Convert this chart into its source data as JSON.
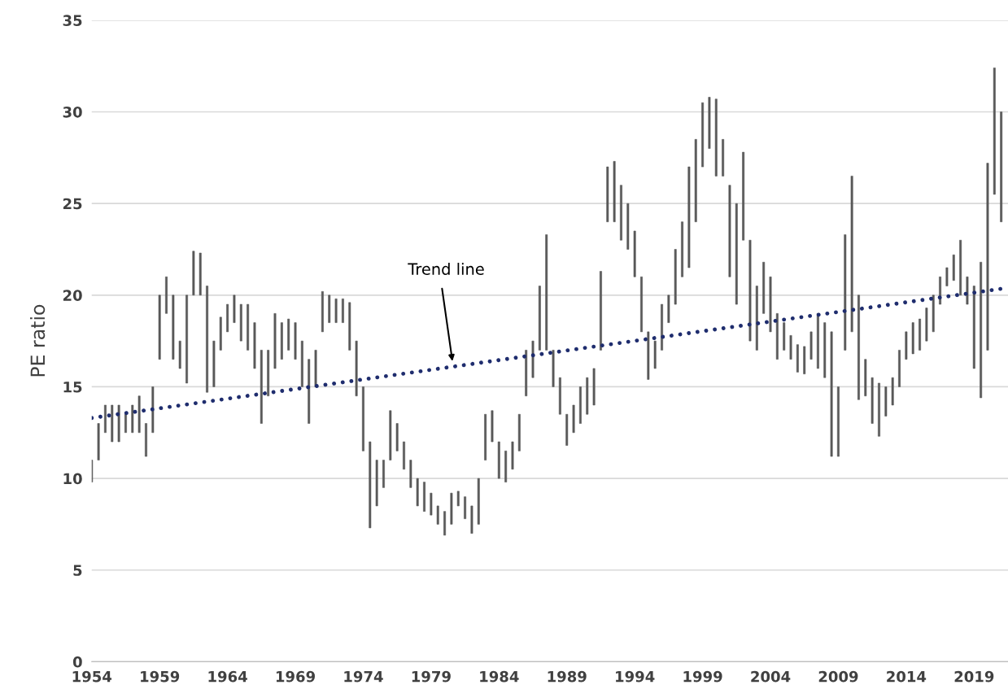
{
  "chart_data": {
    "type": "bar",
    "ylabel": "PE ratio",
    "x": [
      1954.0,
      1954.5,
      1955.0,
      1955.5,
      1956.0,
      1956.5,
      1957.0,
      1957.5,
      1958.0,
      1958.5,
      1959.0,
      1959.5,
      1960.0,
      1960.5,
      1961.0,
      1961.5,
      1962.0,
      1962.5,
      1963.0,
      1963.5,
      1964.0,
      1964.5,
      1965.0,
      1965.5,
      1966.0,
      1966.5,
      1967.0,
      1967.5,
      1968.0,
      1968.5,
      1969.0,
      1969.5,
      1970.0,
      1970.5,
      1971.0,
      1971.5,
      1972.0,
      1972.5,
      1973.0,
      1973.5,
      1974.0,
      1974.5,
      1975.0,
      1975.5,
      1976.0,
      1976.5,
      1977.0,
      1977.5,
      1978.0,
      1978.5,
      1979.0,
      1979.5,
      1980.0,
      1980.5,
      1981.0,
      1981.5,
      1982.0,
      1982.5,
      1983.0,
      1983.5,
      1984.0,
      1984.5,
      1985.0,
      1985.5,
      1986.0,
      1986.5,
      1987.0,
      1987.5,
      1988.0,
      1988.5,
      1989.0,
      1989.5,
      1990.0,
      1990.5,
      1991.0,
      1991.5,
      1992.0,
      1992.5,
      1993.0,
      1993.5,
      1994.0,
      1994.5,
      1995.0,
      1995.5,
      1996.0,
      1996.5,
      1997.0,
      1997.5,
      1998.0,
      1998.5,
      1999.0,
      1999.5,
      2000.0,
      2000.5,
      2001.0,
      2001.5,
      2002.0,
      2002.5,
      2003.0,
      2003.5,
      2004.0,
      2004.5,
      2005.0,
      2005.5,
      2006.0,
      2006.5,
      2007.0,
      2007.5,
      2008.0,
      2008.5,
      2009.0,
      2009.5,
      2010.0,
      2010.5,
      2011.0,
      2011.5,
      2012.0,
      2012.5,
      2013.0,
      2013.5,
      2014.0,
      2014.5,
      2015.0,
      2015.5,
      2016.0,
      2016.5,
      2017.0,
      2017.5,
      2018.0,
      2018.5,
      2019.0,
      2019.5,
      2020.0,
      2020.5,
      2021.0
    ],
    "series": [
      {
        "color": "#595959",
        "base": [
          9.8,
          11,
          12.5,
          12,
          12,
          12.5,
          12.5,
          12.5,
          11.2,
          12.5,
          16.5,
          19,
          16.5,
          16,
          15.2,
          20,
          20,
          14.7,
          15,
          17,
          18,
          18.5,
          17.5,
          17,
          16,
          13,
          14.5,
          16,
          16.5,
          17,
          16.5,
          15,
          13,
          15,
          18,
          18.5,
          18.5,
          18.5,
          17,
          14.5,
          11.5,
          7.3,
          8.5,
          9.5,
          11,
          11.5,
          10.5,
          9.5,
          8.5,
          8.2,
          8,
          7.5,
          6.9,
          7.5,
          8.5,
          7.8,
          7,
          7.5,
          11,
          12,
          10,
          9.8,
          10.5,
          11.5,
          14.5,
          15.5,
          17,
          17,
          15,
          13.5,
          11.8,
          12.5,
          13,
          13.5,
          14,
          17,
          24,
          24,
          23,
          22.5,
          21,
          18,
          15.4,
          16,
          17,
          18.5,
          19.5,
          21,
          21.5,
          24,
          27,
          28,
          26.5,
          26.5,
          21,
          19.5,
          23,
          17.5,
          17,
          19,
          18,
          16.5,
          17,
          16.5,
          15.8,
          15.7,
          16.5,
          16,
          15.5,
          11.2,
          11.2,
          17,
          18,
          14.3,
          14.5,
          13,
          12.3,
          13.4,
          14,
          15,
          16.5,
          16.8,
          17,
          17.5,
          18,
          19.5,
          20.5,
          20.8,
          20,
          19.5,
          16,
          14.4,
          17,
          25.5,
          24
        ],
        "values": [
          1.2,
          2,
          1.5,
          2,
          2,
          1,
          1.5,
          2,
          1.8,
          2.5,
          3.5,
          2,
          3.5,
          1.5,
          4.8,
          2.4,
          2.3,
          5.8,
          2.5,
          1.8,
          1.5,
          1.5,
          2,
          2.5,
          2.5,
          4,
          2.5,
          3,
          2,
          1.7,
          2,
          2.5,
          3.5,
          2,
          2.2,
          1.5,
          1.3,
          1.3,
          2.6,
          3,
          3.5,
          4.7,
          2.5,
          1.5,
          2.7,
          1.5,
          1.5,
          1.5,
          1.5,
          1.6,
          1.2,
          1,
          1.3,
          1.7,
          0.8,
          1.2,
          1.5,
          2.5,
          2.5,
          1.7,
          2,
          1.7,
          1.5,
          2,
          2.5,
          2,
          3.5,
          6.3,
          2,
          2,
          1.7,
          1.5,
          2,
          2,
          2,
          4.3,
          3,
          3.3,
          3,
          2.5,
          2.5,
          3,
          2.6,
          1.5,
          2.5,
          1.5,
          3,
          3,
          5.5,
          4.5,
          3.5,
          2.8,
          4.2,
          2,
          5,
          5.5,
          4.8,
          5.5,
          3.5,
          2.8,
          3,
          2.5,
          1.5,
          1.3,
          1.5,
          1.5,
          1.5,
          3,
          3,
          6.8,
          3.8,
          6.3,
          8.5,
          5.7,
          2,
          2.5,
          2.9,
          1.6,
          1.5,
          2,
          1.5,
          1.7,
          1.7,
          1.8,
          2,
          1.5,
          1,
          1.4,
          3,
          1.5,
          4.5,
          7.4,
          10.2,
          6.9,
          6
        ]
      },
      {
        "type": "line",
        "color": "#1f2d6e",
        "line_style": "dotted",
        "x": [
          1954.0,
          2021.5
        ],
        "values": [
          13.3,
          20.4
        ]
      }
    ],
    "annotations": [
      "Trend line"
    ],
    "xlim": [
      1954.0,
      2021.5
    ],
    "xticks": [
      1954,
      1959,
      1964,
      1969,
      1974,
      1979,
      1984,
      1989,
      1994,
      1999,
      2004,
      2009,
      2014,
      2019
    ],
    "ylim": [
      0,
      35
    ],
    "yticks": [
      0,
      5,
      10,
      15,
      20,
      25,
      30,
      35
    ],
    "grid": "y",
    "legend": false,
    "marker": "none"
  }
}
